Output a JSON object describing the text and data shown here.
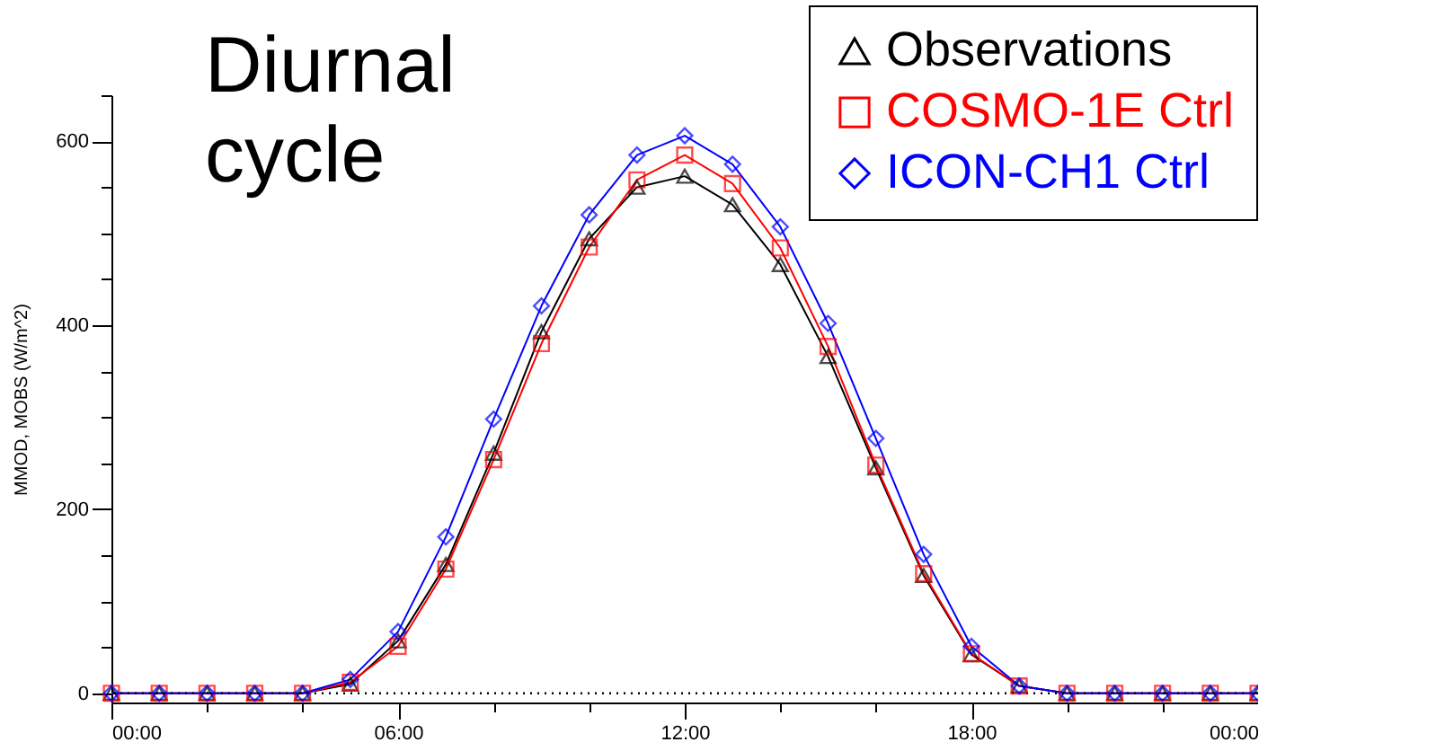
{
  "chart_data": {
    "type": "line",
    "title": "Diurnal cycle",
    "ylabel": "MMOD, MOBS (W/m^2)",
    "x": [
      0,
      1,
      2,
      3,
      4,
      5,
      6,
      7,
      8,
      9,
      10,
      11,
      12,
      13,
      14,
      15,
      16,
      17,
      18,
      19,
      20,
      21,
      22,
      23,
      24
    ],
    "series": [
      {
        "name": "Observations",
        "color": "#000000",
        "marker": "triangle",
        "values": [
          0,
          0,
          0,
          0,
          0,
          10,
          57,
          140,
          261,
          393,
          494,
          550,
          562,
          531,
          466,
          366,
          245,
          128,
          42,
          8,
          0,
          0,
          0,
          0,
          0
        ]
      },
      {
        "name": "COSMO-1E Ctrl",
        "color": "#ff0000",
        "marker": "square",
        "values": [
          0,
          0,
          0,
          0,
          0,
          12,
          51,
          135,
          254,
          380,
          485,
          558,
          585,
          554,
          484,
          377,
          248,
          130,
          43,
          8,
          0,
          0,
          0,
          0,
          0
        ]
      },
      {
        "name": "ICON-CH1 Ctrl",
        "color": "#0000ff",
        "marker": "diamond",
        "values": [
          0,
          0,
          0,
          0,
          0,
          15,
          67,
          170,
          298,
          421,
          520,
          585,
          606,
          575,
          507,
          402,
          277,
          151,
          51,
          8,
          0,
          0,
          0,
          0,
          0
        ]
      }
    ],
    "xlim": [
      0,
      24
    ],
    "xticks": [
      {
        "value": 0,
        "label": "00:00"
      },
      {
        "value": 2,
        "label": null
      },
      {
        "value": 4,
        "label": null
      },
      {
        "value": 6,
        "label": "06:00"
      },
      {
        "value": 8,
        "label": null
      },
      {
        "value": 10,
        "label": null
      },
      {
        "value": 12,
        "label": "12:00"
      },
      {
        "value": 14,
        "label": null
      },
      {
        "value": 16,
        "label": null
      },
      {
        "value": 18,
        "label": "18:00"
      },
      {
        "value": 20,
        "label": null
      },
      {
        "value": 22,
        "label": null
      },
      {
        "value": 24,
        "label": "00:00"
      }
    ],
    "ylim": [
      -10,
      650
    ],
    "yticks": [
      0,
      {
        "value": 50,
        "label": null
      },
      {
        "value": 100,
        "label": null
      },
      {
        "value": 150,
        "label": null
      },
      200,
      {
        "value": 250,
        "label": null
      },
      {
        "value": 300,
        "label": null
      },
      {
        "value": 350,
        "label": null
      },
      400,
      {
        "value": 450,
        "label": null
      },
      {
        "value": 500,
        "label": null
      },
      {
        "value": 550,
        "label": null
      },
      600,
      {
        "value": 650,
        "label": null
      }
    ],
    "ref_lines": [
      {
        "axis": "y",
        "value": 0,
        "line_style": "dotted",
        "color": "#000000"
      }
    ],
    "legend": "top right",
    "grid": false,
    "line_style": "solid"
  }
}
